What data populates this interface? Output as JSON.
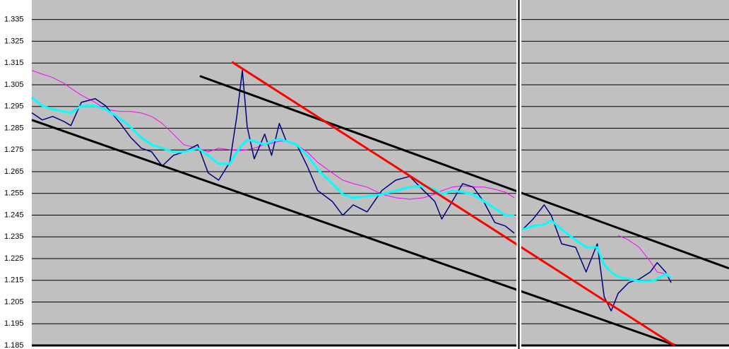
{
  "chart_data": {
    "type": "line",
    "ylim": [
      1.185,
      1.344
    ],
    "yticks": [
      1.185,
      1.195,
      1.205,
      1.215,
      1.225,
      1.235,
      1.245,
      1.255,
      1.265,
      1.275,
      1.285,
      1.295,
      1.305,
      1.315,
      1.325,
      1.335
    ],
    "xlim": [
      0,
      100
    ],
    "grid": true,
    "x": [
      0,
      1.5,
      3.0,
      4.6,
      5.6,
      7.1,
      9.1,
      10.6,
      12.7,
      14.2,
      15.7,
      17.2,
      18.7,
      20.3,
      21.8,
      23.8,
      25.3,
      26.8,
      28.4,
      29.4,
      30.2,
      30.9,
      31.9,
      33.4,
      34.4,
      35.5,
      36.5,
      38.0,
      39.5,
      41.0,
      43.1,
      44.6,
      46.1,
      48.1,
      50.2,
      52.2,
      54.2,
      56.2,
      57.8,
      58.8,
      60.3,
      61.8,
      63.3,
      64.8,
      66.4,
      67.9,
      69.2,
      69.7,
      70.4,
      71.9,
      73.5,
      74.5,
      76.0,
      78.0,
      79.5,
      81.1,
      82.1,
      83.1,
      84.1,
      85.6,
      87.1,
      88.7,
      89.7,
      90.9,
      91.7
    ],
    "series": [
      {
        "color": "#ff00ff",
        "linewidth": 1,
        "values": [
          1.3116,
          1.3099,
          1.3083,
          1.3057,
          1.3034,
          1.3002,
          1.2969,
          1.2937,
          1.2927,
          1.2927,
          1.292,
          1.2904,
          1.2872,
          1.2823,
          1.2774,
          1.2758,
          1.2741,
          1.2758,
          1.2751,
          1.2748,
          1.2748,
          1.2751,
          1.2758,
          1.2774,
          1.2781,
          1.279,
          1.279,
          1.2774,
          1.2741,
          1.2693,
          1.2644,
          1.2611,
          1.2595,
          1.2579,
          1.2546,
          1.253,
          1.2523,
          1.253,
          1.2546,
          1.2562,
          1.2579,
          1.2585,
          1.2579,
          1.2579,
          1.2569,
          1.2556,
          1.253,
          null,
          null,
          null,
          null,
          null,
          null,
          null,
          null,
          null,
          null,
          null,
          1.2357,
          1.2335,
          1.2302,
          1.2237,
          1.2188,
          1.2179,
          1.2162
        ]
      },
      {
        "color": "#000080",
        "linewidth": 1.5,
        "values": [
          1.2921,
          1.2888,
          1.2904,
          1.2881,
          1.2862,
          1.2969,
          1.2986,
          1.2953,
          1.2872,
          1.2807,
          1.2758,
          1.2741,
          1.2676,
          1.2725,
          1.2741,
          1.2774,
          1.2644,
          1.2611,
          1.2693,
          1.2904,
          1.3116,
          1.2855,
          1.2709,
          1.2823,
          1.2725,
          1.2872,
          1.279,
          1.2774,
          1.2676,
          1.2563,
          1.2513,
          1.2449,
          1.2497,
          1.2465,
          1.2563,
          1.2611,
          1.2628,
          1.2563,
          1.2513,
          1.2432,
          1.2513,
          1.2595,
          1.2579,
          1.2513,
          1.2416,
          1.24,
          1.2367,
          null,
          1.2384,
          1.2432,
          1.2497,
          1.2449,
          1.2318,
          1.2302,
          1.2188,
          1.2318,
          1.2074,
          1.2009,
          1.209,
          1.2139,
          1.2155,
          1.2188,
          1.2231,
          1.2188,
          1.2139
        ]
      },
      {
        "color": "#00ffff",
        "linewidth": 3,
        "values": [
          1.2992,
          1.2953,
          1.2937,
          1.2927,
          1.292,
          1.2953,
          1.2953,
          1.2937,
          1.2894,
          1.2855,
          1.2807,
          1.2774,
          1.2758,
          1.2741,
          1.2741,
          1.2758,
          1.2725,
          1.2686,
          1.2686,
          1.2741,
          1.2774,
          1.2797,
          1.279,
          1.2774,
          1.279,
          1.28,
          1.279,
          1.2774,
          1.2725,
          1.266,
          1.2595,
          1.2546,
          1.253,
          1.2536,
          1.2546,
          1.2562,
          1.2579,
          1.2585,
          1.2569,
          1.2546,
          1.2562,
          1.2556,
          1.2546,
          1.2514,
          1.2481,
          1.2449,
          1.2449,
          null,
          1.2384,
          1.24,
          1.2406,
          1.2426,
          1.2384,
          1.2335,
          1.2302,
          1.2302,
          1.2221,
          1.2188,
          1.2166,
          1.2156,
          1.2146,
          1.2146,
          1.2156,
          1.2179,
          1.2162
        ]
      },
      {
        "color": "#000000",
        "linewidth": 3,
        "x": [
          24.1,
          100
        ],
        "values": [
          1.309,
          1.2205
        ]
      },
      {
        "color": "#000000",
        "linewidth": 3,
        "x": [
          0,
          92.4
        ],
        "values": [
          1.2888,
          1.185
        ]
      },
      {
        "color": "#ff0000",
        "linewidth": 3,
        "x": [
          28.7,
          92.2
        ],
        "values": [
          1.3155,
          1.185
        ]
      }
    ]
  }
}
